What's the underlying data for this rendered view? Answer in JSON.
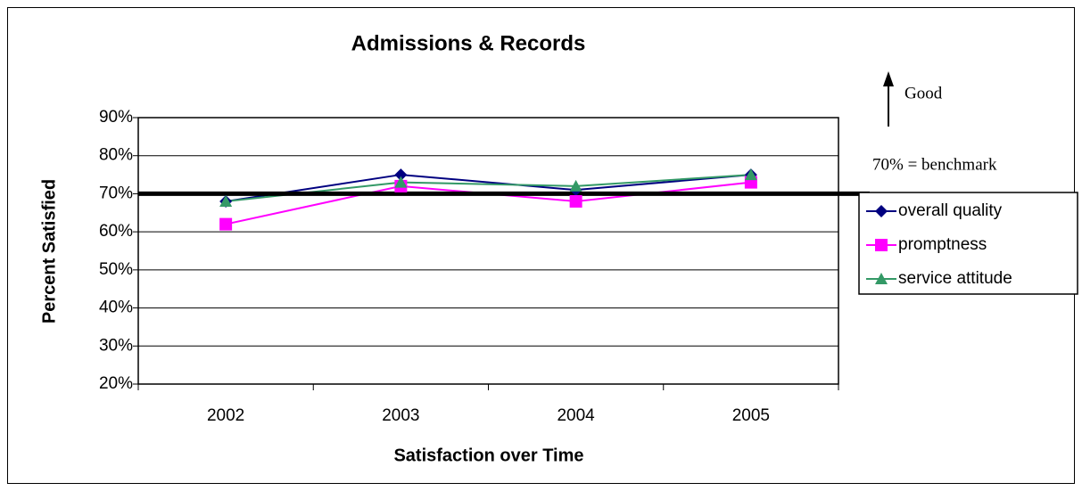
{
  "chart_data": {
    "type": "line",
    "title": "Admissions & Records",
    "x_label": "Satisfaction over Time",
    "y_label": "Percent Satisfied",
    "categories": [
      "2002",
      "2003",
      "2004",
      "2005"
    ],
    "series": [
      {
        "name": "overall quality",
        "color": "#000080",
        "marker": "diamond",
        "values": [
          68,
          75,
          71,
          75
        ]
      },
      {
        "name": "promptness",
        "color": "#ff00ff",
        "marker": "square",
        "values": [
          62,
          72,
          68,
          73
        ]
      },
      {
        "name": "service attitude",
        "color": "#339966",
        "marker": "triangle",
        "values": [
          68,
          73,
          72,
          75
        ]
      }
    ],
    "ylim": [
      20,
      90
    ],
    "yticks": [
      {
        "value": 20,
        "label": "20%"
      },
      {
        "value": 30,
        "label": "30%"
      },
      {
        "value": 40,
        "label": "40%"
      },
      {
        "value": 50,
        "label": "50%"
      },
      {
        "value": 60,
        "label": "60%"
      },
      {
        "value": 70,
        "label": "70%"
      },
      {
        "value": 80,
        "label": "80%"
      },
      {
        "value": 90,
        "label": "90%"
      }
    ],
    "grid": true,
    "legend": "right",
    "benchmark": 70,
    "annotations": [
      "Good",
      "70% = benchmark"
    ]
  }
}
